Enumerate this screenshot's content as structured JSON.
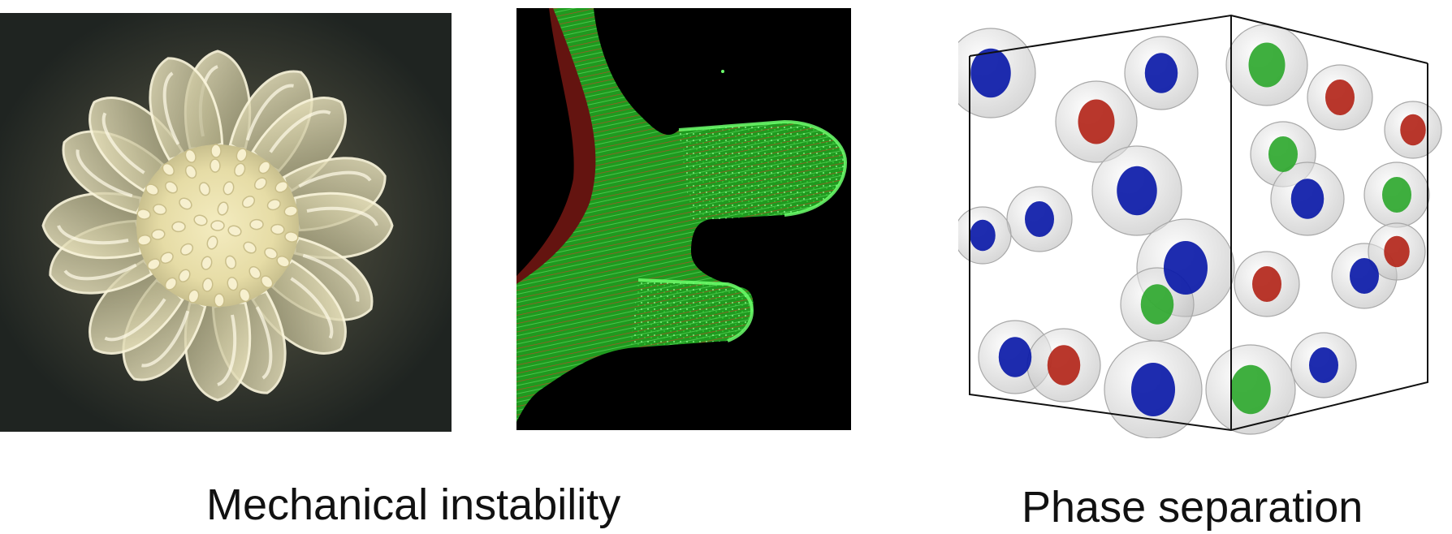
{
  "captions": {
    "mechanical": "Mechanical instability",
    "phase": "Phase separation"
  },
  "images": {
    "colony": "bacterial-colony-wrinkle-pattern",
    "fluorescence": "fluorescent-tissue-buckling-micrograph",
    "simulation": "3d-phase-separation-droplets-cube"
  },
  "colors": {
    "colony_bg": "#1f2421",
    "colony_fill": "#e8dfae",
    "fluor_green": "#3fdc3f",
    "fluor_red": "#e0332a",
    "droplet_blue": "#0b1aa8",
    "droplet_red": "#b3261a",
    "droplet_green": "#2fa82f"
  }
}
